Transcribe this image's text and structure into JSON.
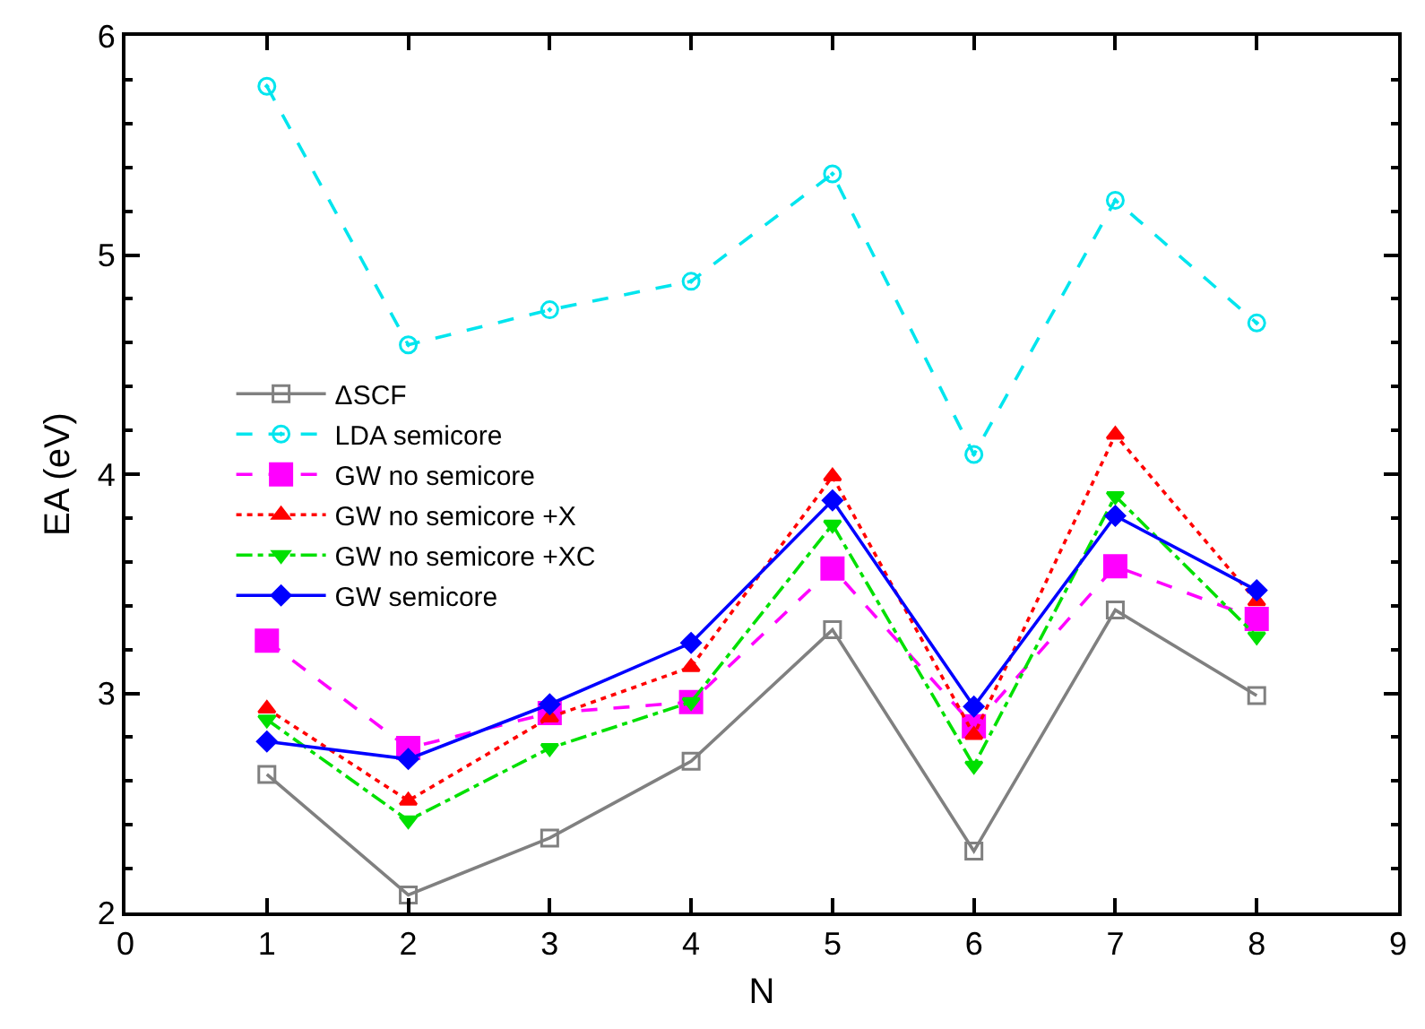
{
  "chart_data": {
    "type": "line",
    "xlabel": "N",
    "ylabel": "EA (eV)",
    "x": [
      1,
      2,
      3,
      4,
      5,
      6,
      7,
      8
    ],
    "xlim": [
      0,
      9
    ],
    "xticks": [
      0,
      1,
      2,
      3,
      4,
      5,
      6,
      7,
      8,
      9
    ],
    "ylim": [
      2,
      6
    ],
    "yticks": [
      2,
      3,
      4,
      5,
      6
    ],
    "legend": "left",
    "series": [
      {
        "name": "ΔSCF",
        "color": "#808080",
        "marker": "square-open",
        "line_style": "solid",
        "values": [
          2.63,
          2.08,
          2.34,
          2.69,
          3.29,
          2.28,
          3.38,
          2.99
        ]
      },
      {
        "name": "LDA semicore",
        "color": "#00e5ee",
        "marker": "circle-open",
        "line_style": "dashed",
        "values": [
          5.77,
          4.59,
          4.75,
          4.88,
          5.37,
          4.09,
          5.25,
          4.69
        ]
      },
      {
        "name": "GW no semicore",
        "color": "#ff00ff",
        "marker": "square",
        "line_style": "dashed",
        "values": [
          3.24,
          2.75,
          2.91,
          2.96,
          3.57,
          2.85,
          3.58,
          3.34
        ]
      },
      {
        "name": "GW no semicore +X",
        "color": "#ff0000",
        "marker": "triangle",
        "line_style": "dotted",
        "values": [
          2.93,
          2.51,
          2.89,
          3.12,
          3.99,
          2.81,
          4.18,
          3.42
        ]
      },
      {
        "name": "GW no semicore +XC",
        "color": "#00e000",
        "marker": "triangle-down",
        "line_style": "dashdot",
        "values": [
          2.88,
          2.42,
          2.75,
          2.96,
          3.77,
          2.67,
          3.9,
          3.26
        ]
      },
      {
        "name": "GW semicore",
        "color": "#0000ff",
        "marker": "diamond",
        "line_style": "solid",
        "values": [
          2.78,
          2.7,
          2.95,
          3.23,
          3.88,
          2.94,
          3.81,
          3.47
        ]
      }
    ]
  }
}
